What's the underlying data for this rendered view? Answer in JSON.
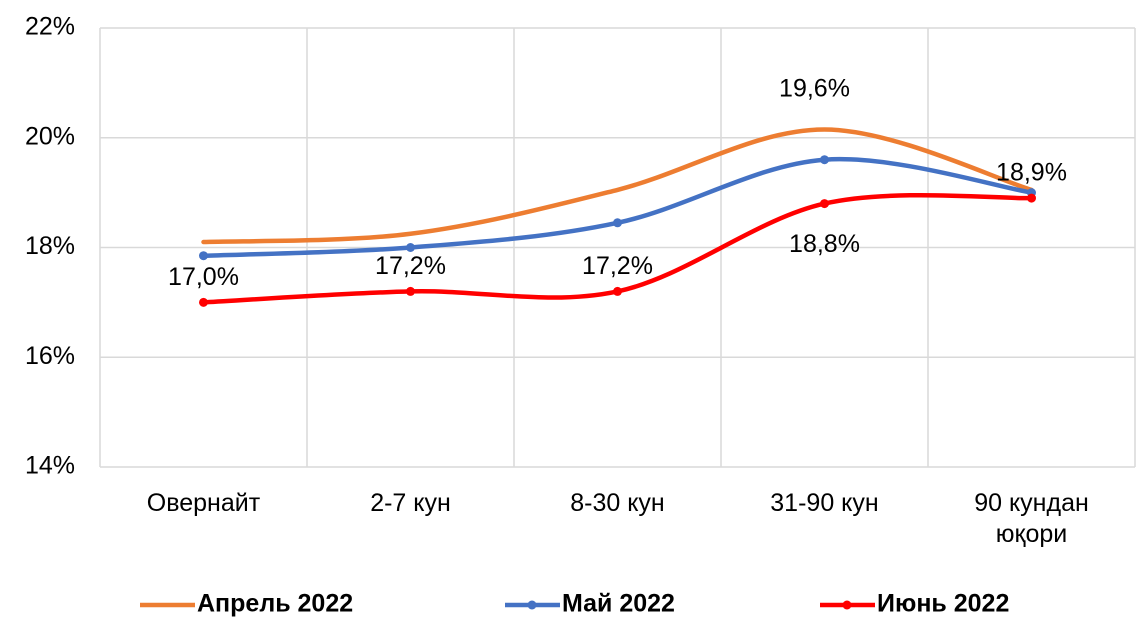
{
  "chart_data": {
    "type": "line",
    "categories": [
      "Овернайт",
      "2-7 кун",
      "8-30 кун",
      "31-90 кун",
      "90 кундан юқори"
    ],
    "series": [
      {
        "name": "Апрель 2022",
        "color": "#ed7d31",
        "marker": false,
        "values": [
          18.1,
          18.25,
          19.05,
          20.15,
          19.05
        ]
      },
      {
        "name": "Май 2022",
        "color": "#4472c4",
        "marker": true,
        "values": [
          17.85,
          18.0,
          18.45,
          19.6,
          19.0
        ],
        "value_labels": [
          null,
          null,
          null,
          "19,6%",
          null
        ]
      },
      {
        "name": "Июнь 2022",
        "color": "#ff0000",
        "marker": true,
        "values": [
          17.0,
          17.2,
          17.2,
          18.8,
          18.9
        ],
        "value_labels": [
          "17,0%",
          "17,2%",
          "17,2%",
          "18,8%",
          "18,9%"
        ]
      }
    ],
    "ylim": [
      14,
      22
    ],
    "yticks": [
      {
        "value": 14,
        "label": "14%"
      },
      {
        "value": 16,
        "label": "16%"
      },
      {
        "value": 18,
        "label": "18%"
      },
      {
        "value": 20,
        "label": "20%"
      },
      {
        "value": 22,
        "label": "22%"
      }
    ],
    "grid": true,
    "smooth": true,
    "legend": "bottom"
  }
}
